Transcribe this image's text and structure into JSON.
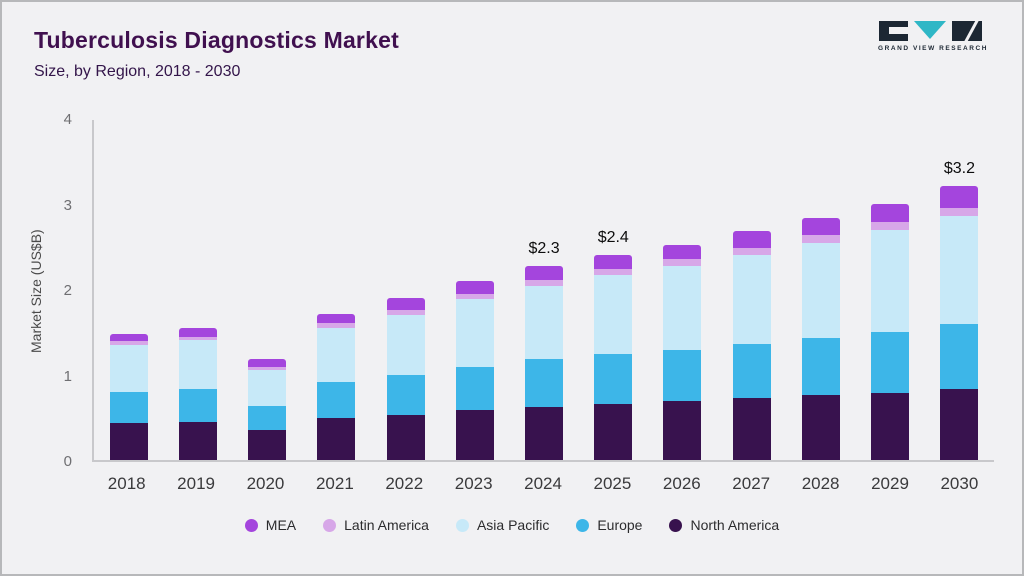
{
  "header": {
    "title": "Tuberculosis Diagnostics Market",
    "subtitle": "Size, by Region, 2018 - 2030",
    "logo_text": "GRAND VIEW RESEARCH"
  },
  "chart_data": {
    "type": "bar",
    "stacked": true,
    "title": "Tuberculosis Diagnostics Market Size, by Region, 2018 - 2030",
    "xlabel": "",
    "ylabel": "Market Size (US$B)",
    "ylim": [
      0,
      4
    ],
    "yticks": [
      0,
      1,
      2,
      3,
      4
    ],
    "grid": false,
    "legend_position": "bottom",
    "categories": [
      "2018",
      "2019",
      "2020",
      "2021",
      "2022",
      "2023",
      "2024",
      "2025",
      "2026",
      "2027",
      "2028",
      "2029",
      "2030"
    ],
    "series": [
      {
        "name": "North America",
        "color": "#38124e",
        "values": [
          0.43,
          0.45,
          0.35,
          0.49,
          0.53,
          0.58,
          0.62,
          0.66,
          0.69,
          0.72,
          0.76,
          0.79,
          0.83
        ]
      },
      {
        "name": "Europe",
        "color": "#3db6e8",
        "values": [
          0.37,
          0.38,
          0.28,
          0.42,
          0.46,
          0.51,
          0.56,
          0.58,
          0.6,
          0.64,
          0.67,
          0.71,
          0.76
        ]
      },
      {
        "name": "Asia Pacific",
        "color": "#c7e9f8",
        "values": [
          0.55,
          0.57,
          0.42,
          0.64,
          0.71,
          0.79,
          0.86,
          0.93,
          0.98,
          1.04,
          1.11,
          1.19,
          1.26
        ]
      },
      {
        "name": "Latin America",
        "color": "#d7a7e8",
        "values": [
          0.04,
          0.04,
          0.04,
          0.05,
          0.06,
          0.06,
          0.07,
          0.07,
          0.08,
          0.08,
          0.09,
          0.09,
          0.1
        ]
      },
      {
        "name": "MEA",
        "color": "#a445dd",
        "values": [
          0.08,
          0.11,
          0.09,
          0.11,
          0.14,
          0.15,
          0.16,
          0.16,
          0.17,
          0.2,
          0.2,
          0.22,
          0.25
        ]
      }
    ],
    "totals": [
      1.47,
      1.55,
      1.18,
      1.71,
      1.9,
      2.09,
      2.27,
      2.4,
      2.52,
      2.68,
      2.83,
      3.0,
      3.2
    ],
    "annotations": {
      "2024": "$2.3",
      "2025": "$2.4",
      "2030": "$3.2"
    },
    "legend_order": [
      "MEA",
      "Latin America",
      "Asia Pacific",
      "Europe",
      "North America"
    ]
  }
}
